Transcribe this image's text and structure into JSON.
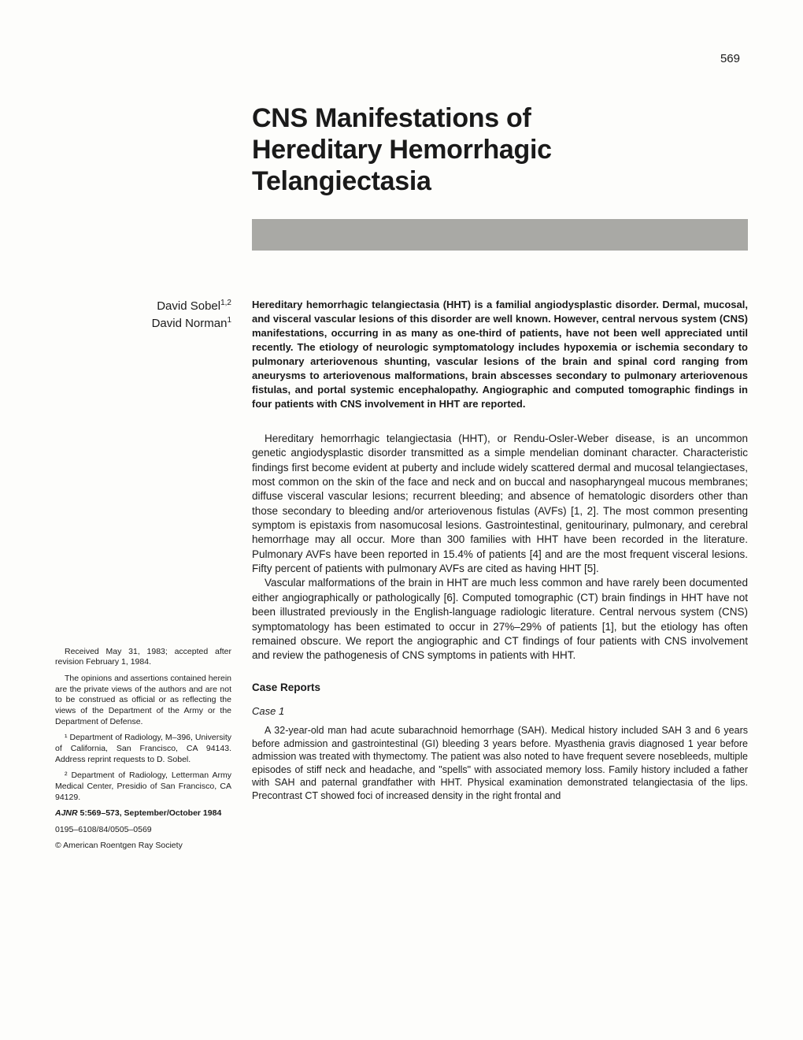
{
  "page_number": "569",
  "title_line1": "CNS Manifestations of",
  "title_line2": "Hereditary Hemorrhagic",
  "title_line3": "Telangiectasia",
  "authors": {
    "a1_name": "David Sobel",
    "a1_sup": "1,2",
    "a2_name": "David Norman",
    "a2_sup": "1"
  },
  "abstract": "Hereditary hemorrhagic telangiectasia (HHT) is a familial angiodysplastic disorder. Dermal, mucosal, and visceral vascular lesions of this disorder are well known. However, central nervous system (CNS) manifestations, occurring in as many as one-third of patients, have not been well appreciated until recently. The etiology of neurologic symptomatology includes hypoxemia or ischemia secondary to pulmonary arteriovenous shunting, vascular lesions of the brain and spinal cord ranging from aneurysms to arteriovenous malformations, brain abscesses secondary to pulmonary arteriovenous fistulas, and portal systemic encephalopathy. Angiographic and computed tomographic findings in four patients with CNS involvement in HHT are reported.",
  "intro_p1": "Hereditary hemorrhagic telangiectasia (HHT), or Rendu-Osler-Weber disease, is an uncommon genetic angiodysplastic disorder transmitted as a simple mendelian dominant character. Characteristic findings first become evident at puberty and include widely scattered dermal and mucosal telangiectases, most common on the skin of the face and neck and on buccal and nasopharyngeal mucous membranes; diffuse visceral vascular lesions; recurrent bleeding; and absence of hematologic disorders other than those secondary to bleeding and/or arteriovenous fistulas (AVFs) [1, 2]. The most common presenting symptom is epistaxis from nasomucosal lesions. Gastrointestinal, genitourinary, pulmonary, and cerebral hemorrhage may all occur. More than 300 families with HHT have been recorded in the literature. Pulmonary AVFs have been reported in 15.4% of patients [4] and are the most frequent visceral lesions. Fifty percent of patients with pulmonary AVFs are cited as having HHT [5].",
  "intro_p2": "Vascular malformations of the brain in HHT are much less common and have rarely been documented either angiographically or pathologically [6]. Computed tomographic (CT) brain findings in HHT have not been illustrated previously in the English-language radiologic literature. Central nervous system (CNS) symptomatology has been estimated to occur in 27%–29% of patients [1], but the etiology has often remained obscure. We report the angiographic and CT findings of four patients with CNS involvement and review the pathogenesis of CNS symptoms in patients with HHT.",
  "section_case_reports": "Case Reports",
  "case1_head": "Case 1",
  "case1_body": "A 32-year-old man had acute subarachnoid hemorrhage (SAH). Medical history included SAH 3 and 6 years before admission and gastrointestinal (GI) bleeding 3 years before. Myasthenia gravis diagnosed 1 year before admission was treated with thymectomy. The patient was also noted to have frequent severe nosebleeds, multiple episodes of stiff neck and headache, and \"spells\" with associated memory loss. Family history included a father with SAH and paternal grandfather with HHT. Physical examination demonstrated telangiectasia of the lips. Precontrast CT showed foci of increased density in the right frontal and",
  "footnotes": {
    "received": "Received May 31, 1983; accepted after revision February 1, 1984.",
    "opinions": "The opinions and assertions contained herein are the private views of the authors and are not to be construed as official or as reflecting the views of the Department of the Army or the Department of Defense.",
    "aff1": "¹ Department of Radiology, M–396, University of California, San Francisco, CA 94143. Address reprint requests to D. Sobel.",
    "aff2": "² Department of Radiology, Letterman Army Medical Center, Presidio of San Francisco, CA 94129.",
    "journal_abbrev": "AJNR",
    "journal_cite": " 5:569–573, September/October 1984",
    "issn": "0195–6108/84/0505–0569",
    "copyright": "© American Roentgen Ray Society"
  },
  "colors": {
    "background": "#fdfdfb",
    "text": "#1a1a1a",
    "bar": "#a9a9a5"
  }
}
